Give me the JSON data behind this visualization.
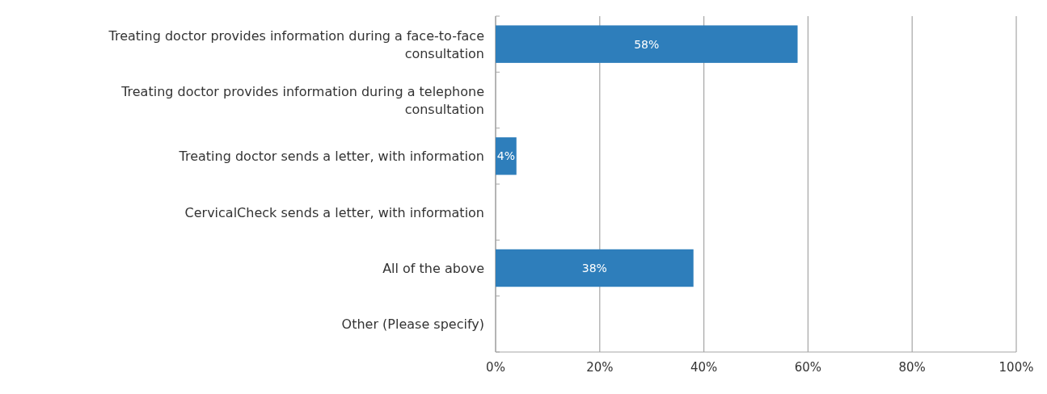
{
  "chart_data": {
    "type": "bar",
    "orientation": "horizontal",
    "categories": [
      "Treating doctor provides information during a face-to-face consultation",
      "Treating doctor provides information during a telephone consultation",
      "Treating doctor sends a letter, with information",
      "CervicalCheck sends a letter, with information",
      "All of the above",
      "Other (Please specify)"
    ],
    "values": [
      58,
      0,
      4,
      0,
      38,
      0
    ],
    "value_labels": [
      "58%",
      null,
      "4%",
      null,
      "38%",
      null
    ],
    "color": "#2e7ebb",
    "xlim": [
      0,
      100
    ],
    "xticks": [
      {
        "value": 0,
        "label": "0%"
      },
      {
        "value": 20,
        "label": "20%"
      },
      {
        "value": 40,
        "label": "40%"
      },
      {
        "value": 60,
        "label": "60%"
      },
      {
        "value": 80,
        "label": "80%"
      },
      {
        "value": 100,
        "label": "100%"
      }
    ],
    "grid": "x"
  }
}
